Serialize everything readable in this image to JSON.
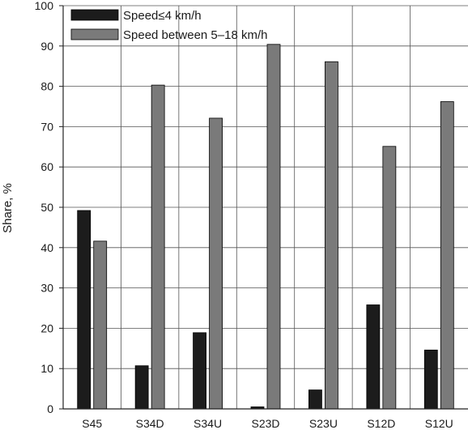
{
  "chart_data": {
    "type": "bar",
    "title": "",
    "xlabel": "",
    "ylabel": "Share, %",
    "ylim": [
      0,
      100
    ],
    "yticks": [
      0,
      10,
      20,
      30,
      40,
      50,
      60,
      70,
      80,
      90,
      100
    ],
    "grid": true,
    "legend_position": "top-left",
    "categories": [
      "S45",
      "S34D",
      "S34U",
      "S23D",
      "S23U",
      "S12D",
      "S12U"
    ],
    "series": [
      {
        "name": "Speed≤4 km/h",
        "color": "#1c1c1c",
        "values": [
          49.2,
          10.7,
          18.9,
          0.5,
          4.7,
          25.8,
          14.6
        ]
      },
      {
        "name": "Speed between 5–18 km/h",
        "color": "#7a7a7a",
        "values": [
          41.6,
          80.3,
          72.1,
          90.4,
          86.1,
          65.1,
          76.2
        ]
      }
    ]
  }
}
